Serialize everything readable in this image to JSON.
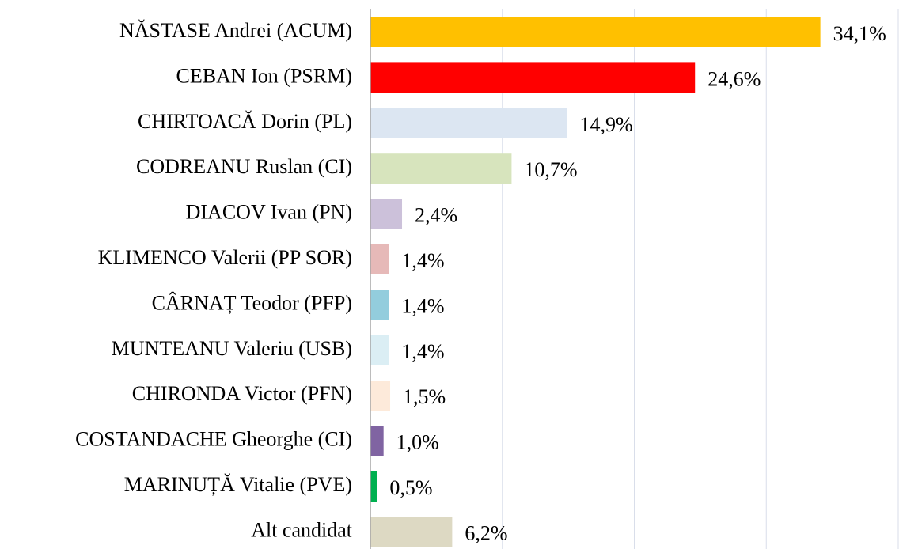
{
  "chart_data": {
    "type": "bar",
    "orientation": "horizontal",
    "categories": [
      "NĂSTASE Andrei (ACUM)",
      "CEBAN Ion (PSRM)",
      "CHIRTOACĂ Dorin (PL)",
      "CODREANU Ruslan (CI)",
      "DIACOV Ivan (PN)",
      "KLIMENCO Valerii (PP SOR)",
      "CÂRNAȚ Teodor (PFP)",
      "MUNTEANU Valeriu (USB)",
      "CHIRONDA Victor (PFN)",
      "COSTANDACHE Gheorghe (CI)",
      "MARINUȚĂ Vitalie (PVE)",
      "Alt candidat"
    ],
    "values": [
      34.1,
      24.6,
      14.9,
      10.7,
      2.4,
      1.4,
      1.4,
      1.4,
      1.5,
      1.0,
      0.5,
      6.2
    ],
    "value_labels": [
      "34,1%",
      "24,6%",
      "14,9%",
      "10,7%",
      "2,4%",
      "1,4%",
      "1,4%",
      "1,4%",
      "1,5%",
      "1,0%",
      "0,5%",
      "6,2%"
    ],
    "colors": [
      "#FFC000",
      "#FF0000",
      "#DCE6F2",
      "#D7E4BD",
      "#CCC1DA",
      "#E6B9B8",
      "#93CDDD",
      "#DBEEF4",
      "#FDEADA",
      "#8064A2",
      "#00B050",
      "#DDD9C3"
    ],
    "xlim": [
      0,
      40
    ],
    "xticks": [
      0,
      10,
      20,
      30,
      40
    ],
    "grid": true
  }
}
